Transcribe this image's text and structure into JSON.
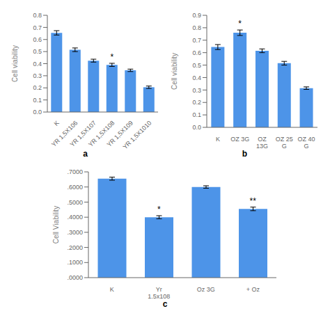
{
  "chart_data": [
    {
      "type": "bar",
      "title": "a",
      "categories": [
        "K",
        "YR 1,5X106",
        "YR 1,5X107",
        "YR 1,5X108",
        "YR 1,5X109",
        "YR 1,5X1010"
      ],
      "values": [
        0.655,
        0.515,
        0.425,
        0.39,
        0.345,
        0.205
      ],
      "errors": [
        0.018,
        0.015,
        0.012,
        0.013,
        0.01,
        0.01
      ],
      "ylim": [
        0,
        0.8
      ],
      "yticks": [
        {
          "value": 0,
          "label": "0.0"
        },
        0.1,
        0.2,
        0.3,
        0.4,
        0.5,
        0.6,
        0.7,
        0.8
      ],
      "ylabel": "Cell viability",
      "color": "#4d94e8",
      "annotations": [
        {
          "category": "YR 1,5X108",
          "text": "*"
        }
      ]
    },
    {
      "type": "bar",
      "title": "b",
      "categories": [
        "K",
        "OZ 3G",
        "OZ\n13G",
        "OZ 25\nG",
        "OZ 40\nG"
      ],
      "values": [
        0.645,
        0.76,
        0.615,
        0.515,
        0.315
      ],
      "errors": [
        0.02,
        0.022,
        0.015,
        0.015,
        0.01
      ],
      "ylim": [
        0,
        0.9
      ],
      "yticks": [
        {
          "value": 0,
          "label": "0.0"
        },
        0.1,
        0.2,
        0.3,
        0.4,
        0.5,
        0.6,
        0.7,
        0.8,
        0.9
      ],
      "ylabel": "Cell viability",
      "color": "#4d94e8",
      "annotations": [
        {
          "category": "OZ 3G",
          "text": "*"
        }
      ]
    },
    {
      "type": "bar",
      "title": "c",
      "categories": [
        "K",
        "Yr\n1,5x108",
        "Oz 3G",
        "+ Oz"
      ],
      "values": [
        0.655,
        0.4,
        0.6,
        0.455
      ],
      "errors": [
        0.01,
        0.01,
        0.008,
        0.012
      ],
      "ylim": [
        0,
        0.7
      ],
      "yticks": [
        {
          "value": 0.0,
          "label": ".0000"
        },
        {
          "value": 0.1,
          "label": ".1000"
        },
        {
          "value": 0.2,
          "label": ".2000"
        },
        {
          "value": 0.3,
          "label": ".3000"
        },
        {
          "value": 0.4,
          "label": ".4000"
        },
        {
          "value": 0.5,
          "label": ".5000"
        },
        {
          "value": 0.6,
          "label": ".6000"
        },
        {
          "value": 0.7,
          "label": ".7000"
        }
      ],
      "ylabel": "Cell Viability",
      "color": "#4d94e8",
      "annotations": [
        {
          "category": "Yr\n1,5x108",
          "text": "*"
        },
        {
          "category": "+ Oz",
          "text": "**"
        }
      ]
    }
  ]
}
